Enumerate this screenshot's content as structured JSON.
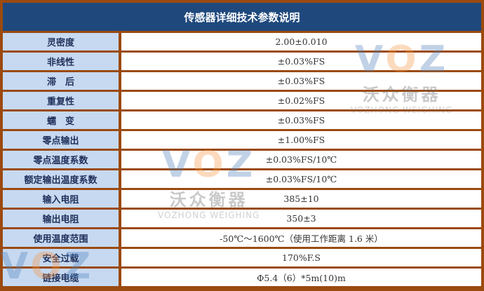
{
  "title": "传感器详细技术参数说明",
  "rows": [
    {
      "label": "灵密度",
      "value": "2.00±0.010"
    },
    {
      "label": "非线性",
      "value": "±0.03%FS"
    },
    {
      "label": "滞　后",
      "value": "±0.03%FS"
    },
    {
      "label": "重复性",
      "value": "±0.02%FS"
    },
    {
      "label": "蠕　变",
      "value": "±0.03%FS"
    },
    {
      "label": "零点输出",
      "value": "±1.00%FS"
    },
    {
      "label": "零点温度系数",
      "value": "±0.03%FS/10℃"
    },
    {
      "label": "额定输出温度系数",
      "value": "±0.03%FS/10℃"
    },
    {
      "label": "输入电阻",
      "value": "385±10"
    },
    {
      "label": "输出电阻",
      "value": "350±3"
    },
    {
      "label": "使用温度范围",
      "value": "-50℃～1600℃（使用工作距离 1.6 米）"
    },
    {
      "label": "安全过载",
      "value": "170%F.S"
    },
    {
      "label": "链接电缆",
      "value": "Φ5.4（6）*5m(10)m"
    }
  ],
  "watermark": {
    "logo": "VOZ",
    "cn": "沃众衡器",
    "en": "VOZHONG WEIGHING"
  },
  "colors": {
    "border": "#9b4a10",
    "header": "#1f497d",
    "label_bg": "#c6d9f1"
  }
}
